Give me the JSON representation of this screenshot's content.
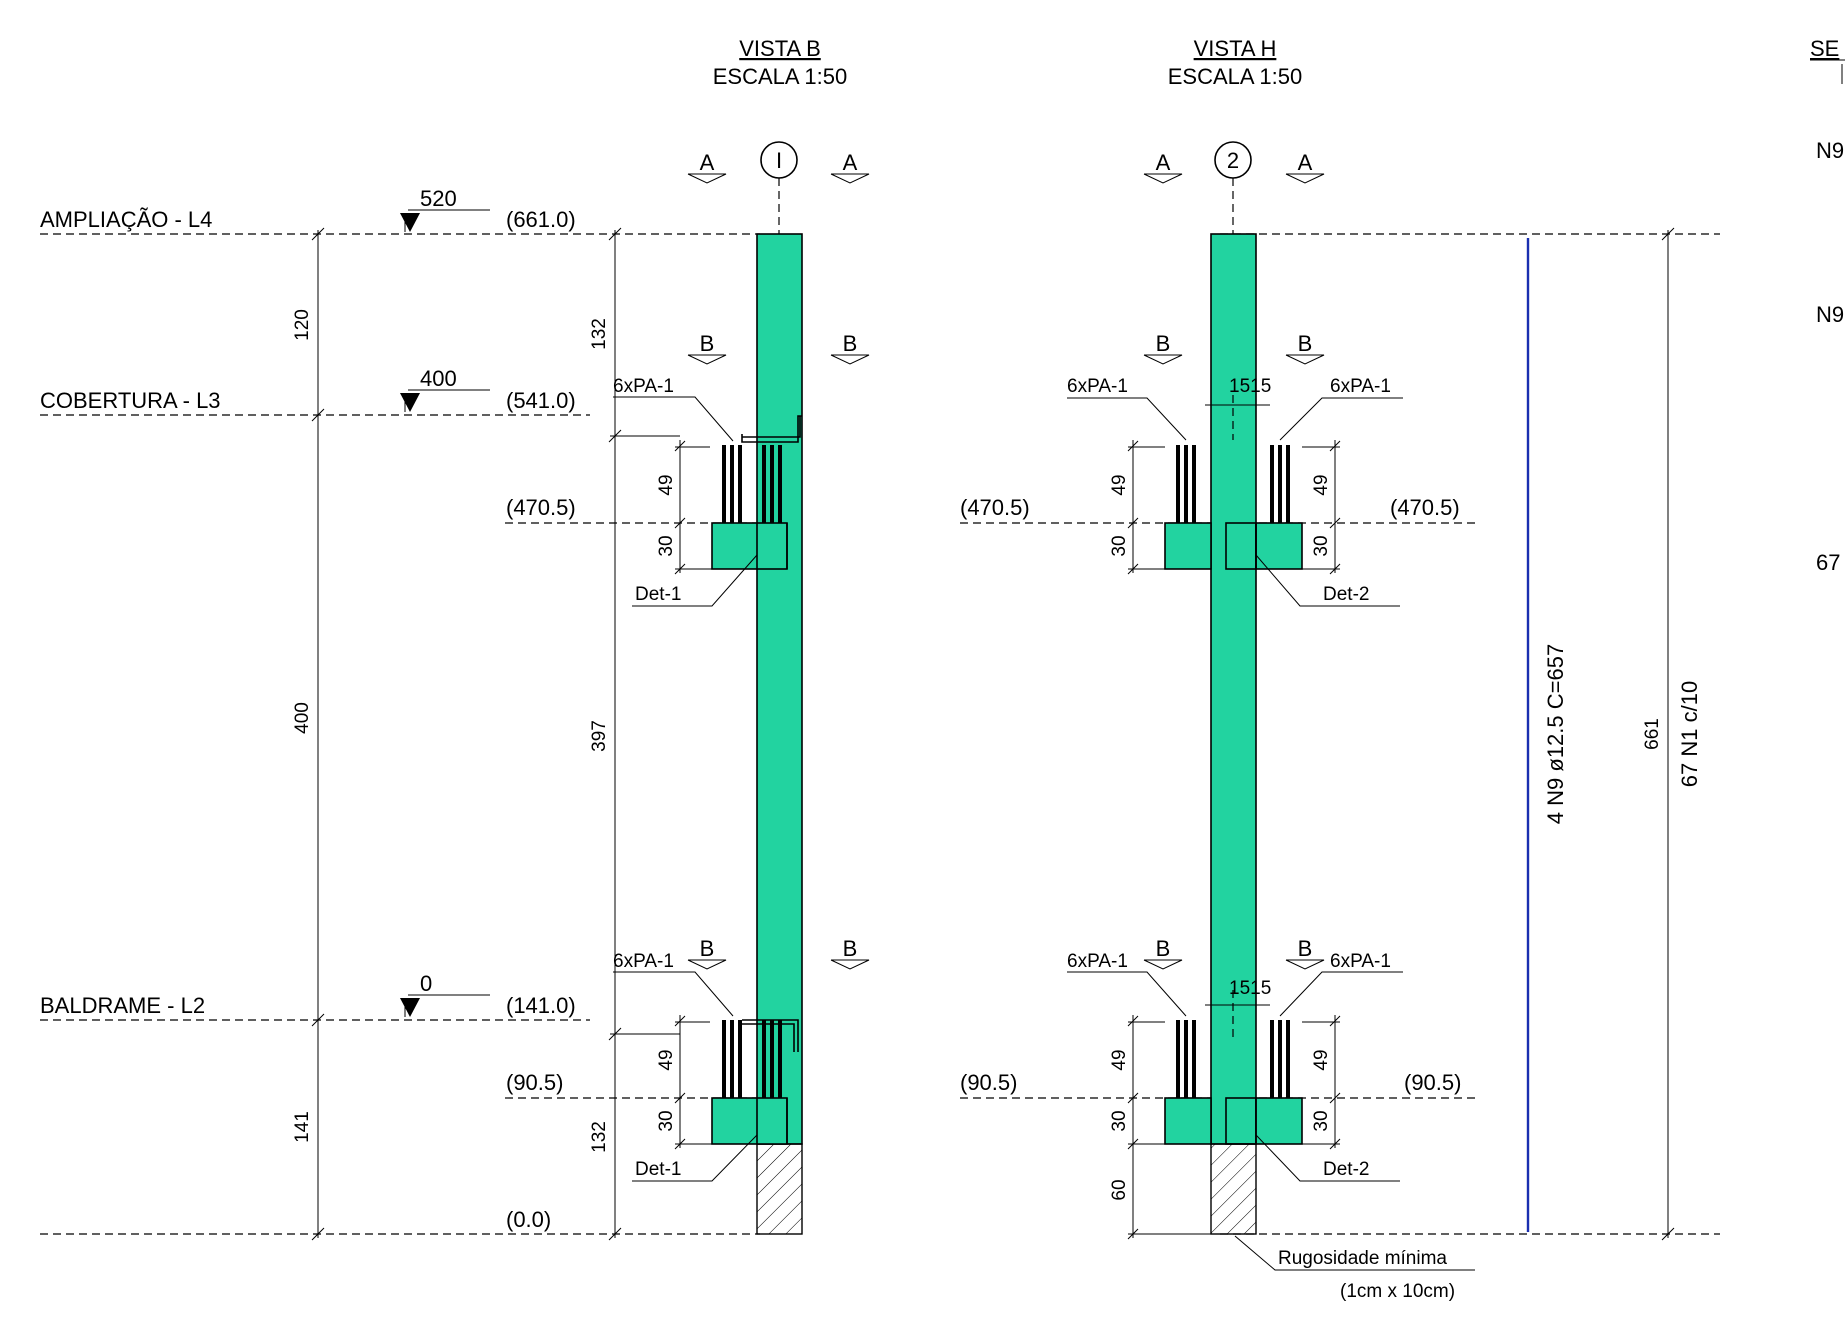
{
  "views": {
    "b": {
      "title": "VISTA B",
      "scale": "ESCALA 1:50",
      "axis": "I"
    },
    "h": {
      "title": "VISTA H",
      "scale": "ESCALA 1:50",
      "axis": "2"
    },
    "section_partial": {
      "title": "SE",
      "lines": [
        "N9",
        "N9",
        "67"
      ]
    }
  },
  "levels": [
    {
      "name": "AMPLIAÇÃO - L4",
      "mark": "520",
      "elev": "(661.0)"
    },
    {
      "name": "COBERTURA - L3",
      "mark": "400",
      "elev": "(541.0)"
    },
    {
      "name": "BALDRAME - L2",
      "mark": "0",
      "elev": "(141.0)"
    },
    {
      "name": "",
      "mark": "",
      "elev": "(0.0)"
    }
  ],
  "level_dims": [
    "120",
    "400",
    "141"
  ],
  "view_b_dims": [
    "132",
    "397",
    "132"
  ],
  "elev_labels": {
    "upper": "(470.5)",
    "lower": "(90.5)"
  },
  "cut_markers": {
    "a": "A",
    "b": "B"
  },
  "dims": {
    "d49": "49",
    "d30": "30",
    "d60": "60",
    "d1515": "1515",
    "d661": "661"
  },
  "callouts": {
    "pa": "6xPA-1",
    "det1": "Det-1",
    "det2": "Det-2"
  },
  "rebar": {
    "long_label": "4 N9 ø12.5 C=657",
    "stirrups_label": "67 N1 c/10",
    "color": "#1a2fb0"
  },
  "note": {
    "line1": "Rugosidade mínima",
    "line2": "(1cm x 10cm)"
  },
  "colors": {
    "concrete": "#22d3a0"
  }
}
